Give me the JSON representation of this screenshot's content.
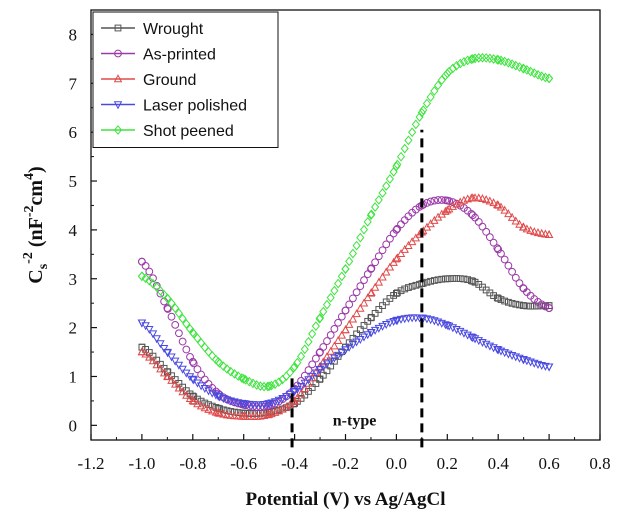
{
  "chart_data": {
    "type": "scatter",
    "xlabel": "Potential (V) vs Ag/AgCl",
    "ylabel": {
      "base": "C",
      "sub": "s",
      "sup": "-2",
      "rest": " (nF",
      "sup2": "-2",
      "mid": "cm",
      "sup3": "4",
      "close": ")"
    },
    "xlim": [
      -1.2,
      0.8
    ],
    "ylim": [
      -0.3,
      8.5
    ],
    "xticks": [
      -1.2,
      -1.0,
      -0.8,
      -0.6,
      -0.4,
      -0.2,
      0.0,
      0.2,
      0.4,
      0.6,
      0.8
    ],
    "xtick_labels": [
      "-1.2",
      "-1.0",
      "-0.8",
      "-0.6",
      "-0.4",
      "-0.2",
      "0.0",
      "0.2",
      "0.4",
      "0.6",
      "0.8"
    ],
    "yticks": [
      0,
      1,
      2,
      3,
      4,
      5,
      6,
      7,
      8
    ],
    "ytick_labels": [
      "0",
      "1",
      "2",
      "3",
      "4",
      "5",
      "6",
      "7",
      "8"
    ],
    "legend_position": "top-left",
    "annotation": {
      "text": "n-type",
      "x": -0.25,
      "y": 0.0
    },
    "vlines": [
      {
        "x": -0.41,
        "y0": -0.45,
        "y1": 1.0
      },
      {
        "x": 0.1,
        "y0": -0.45,
        "y1": 6.05
      }
    ],
    "series": [
      {
        "name": "Wrought",
        "color": "#555555",
        "marker": "square",
        "x": [
          -1.0,
          -0.9,
          -0.8,
          -0.7,
          -0.6,
          -0.5,
          -0.4,
          -0.3,
          -0.2,
          -0.1,
          0.0,
          0.1,
          0.2,
          0.3,
          0.4,
          0.5,
          0.6
        ],
        "y": [
          1.6,
          1.1,
          0.6,
          0.35,
          0.25,
          0.27,
          0.45,
          0.95,
          1.6,
          2.2,
          2.7,
          2.9,
          3.0,
          2.95,
          2.6,
          2.45,
          2.45
        ]
      },
      {
        "name": "As-printed",
        "color": "#9b39a8",
        "marker": "circle",
        "x": [
          -1.0,
          -0.9,
          -0.8,
          -0.7,
          -0.6,
          -0.5,
          -0.4,
          -0.3,
          -0.2,
          -0.1,
          0.0,
          0.1,
          0.2,
          0.3,
          0.4,
          0.5,
          0.6
        ],
        "y": [
          3.35,
          2.4,
          1.3,
          0.65,
          0.42,
          0.4,
          0.75,
          1.5,
          2.35,
          3.2,
          4.0,
          4.5,
          4.6,
          4.3,
          3.6,
          2.8,
          2.4
        ]
      },
      {
        "name": "Ground",
        "color": "#e04a4a",
        "marker": "triangle-up",
        "x": [
          -1.0,
          -0.9,
          -0.8,
          -0.7,
          -0.6,
          -0.5,
          -0.4,
          -0.3,
          -0.2,
          -0.1,
          0.0,
          0.1,
          0.2,
          0.3,
          0.4,
          0.5,
          0.6
        ],
        "y": [
          1.5,
          1.0,
          0.5,
          0.25,
          0.18,
          0.22,
          0.5,
          1.2,
          1.95,
          2.7,
          3.4,
          3.95,
          4.4,
          4.65,
          4.5,
          4.05,
          3.9
        ]
      },
      {
        "name": "Laser polished",
        "color": "#4a4ae0",
        "marker": "triangle-down",
        "x": [
          -1.0,
          -0.9,
          -0.8,
          -0.7,
          -0.6,
          -0.5,
          -0.4,
          -0.3,
          -0.2,
          -0.1,
          0.0,
          0.1,
          0.2,
          0.3,
          0.4,
          0.5,
          0.6
        ],
        "y": [
          2.1,
          1.5,
          0.95,
          0.6,
          0.45,
          0.45,
          0.7,
          1.15,
          1.55,
          1.9,
          2.15,
          2.2,
          2.05,
          1.8,
          1.55,
          1.35,
          1.2
        ]
      },
      {
        "name": "Shot peened",
        "color": "#3ee33e",
        "marker": "diamond",
        "x": [
          -1.0,
          -0.9,
          -0.8,
          -0.7,
          -0.6,
          -0.5,
          -0.4,
          -0.3,
          -0.2,
          -0.1,
          0.0,
          0.1,
          0.2,
          0.3,
          0.4,
          0.5,
          0.6
        ],
        "y": [
          3.05,
          2.6,
          1.9,
          1.3,
          0.95,
          0.8,
          1.2,
          2.2,
          3.2,
          4.3,
          5.3,
          6.4,
          7.2,
          7.5,
          7.48,
          7.3,
          7.1
        ]
      }
    ]
  }
}
